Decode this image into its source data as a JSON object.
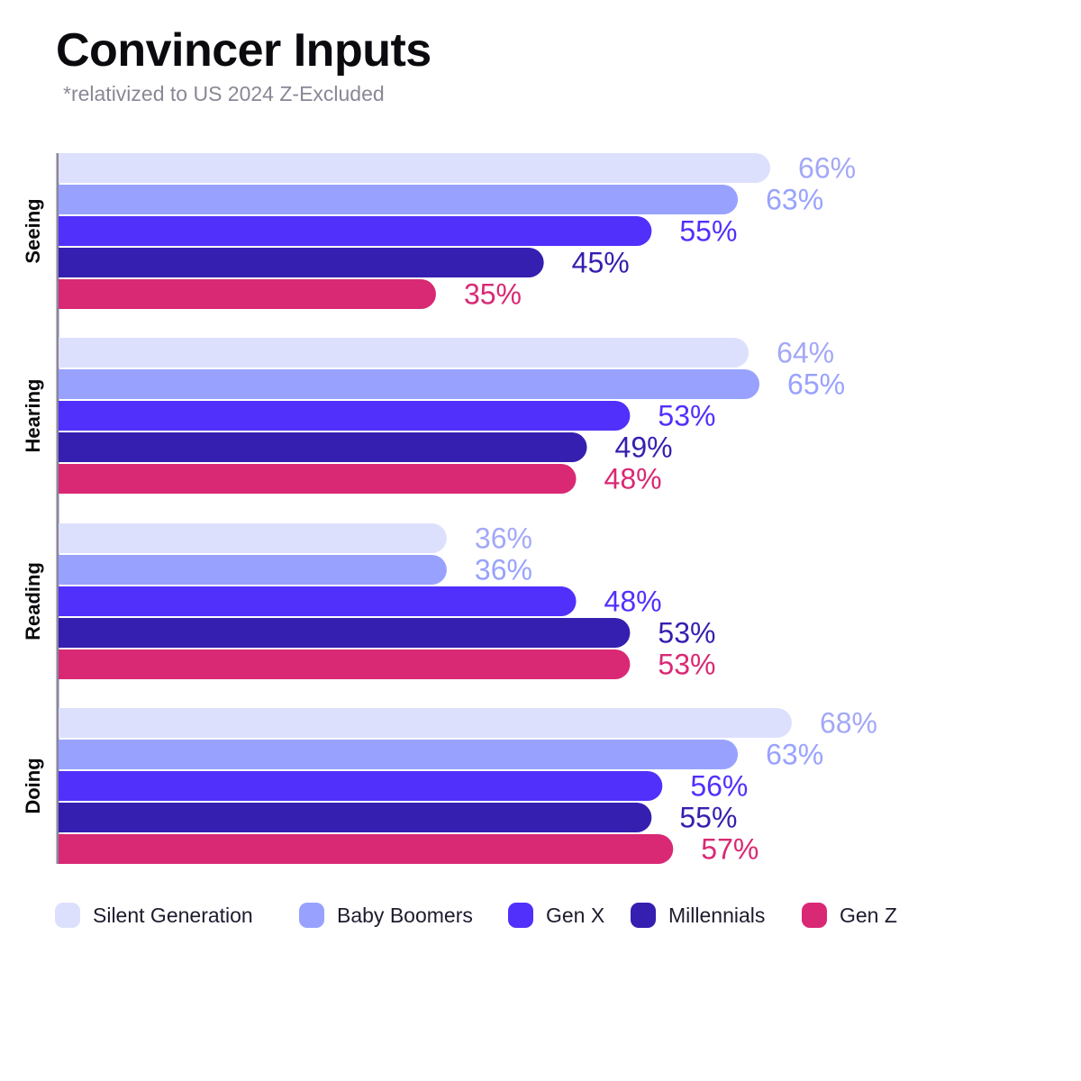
{
  "header": {
    "title": "Convincer Inputs",
    "subtitle": "*relativized to US 2024 Z-Excluded"
  },
  "chart_data": {
    "type": "bar",
    "orientation": "horizontal",
    "title": "Convincer Inputs",
    "subtitle": "*relativized to US 2024 Z-Excluded",
    "categories": [
      "Seeing",
      "Hearing",
      "Reading",
      "Doing"
    ],
    "value_suffix": "%",
    "series": [
      {
        "name": "Silent Generation",
        "color": "#dde0fd",
        "label_color": "#a3a8f7",
        "values": [
          66,
          64,
          36,
          68
        ]
      },
      {
        "name": "Baby Boomers",
        "color": "#98a2fe",
        "label_color": "#98a2fe",
        "values": [
          63,
          65,
          36,
          63
        ]
      },
      {
        "name": "Gen X",
        "color": "#5130fc",
        "label_color": "#5130fc",
        "values": [
          55,
          53,
          48,
          56
        ]
      },
      {
        "name": "Millennials",
        "color": "#351fb0",
        "label_color": "#351fb0",
        "values": [
          45,
          49,
          53,
          55
        ]
      },
      {
        "name": "Gen Z",
        "color": "#d92974",
        "label_color": "#d92974",
        "values": [
          35,
          48,
          53,
          57
        ]
      }
    ],
    "grid": false,
    "axis_line_color": "#8a869a",
    "legend_position": "bottom"
  }
}
